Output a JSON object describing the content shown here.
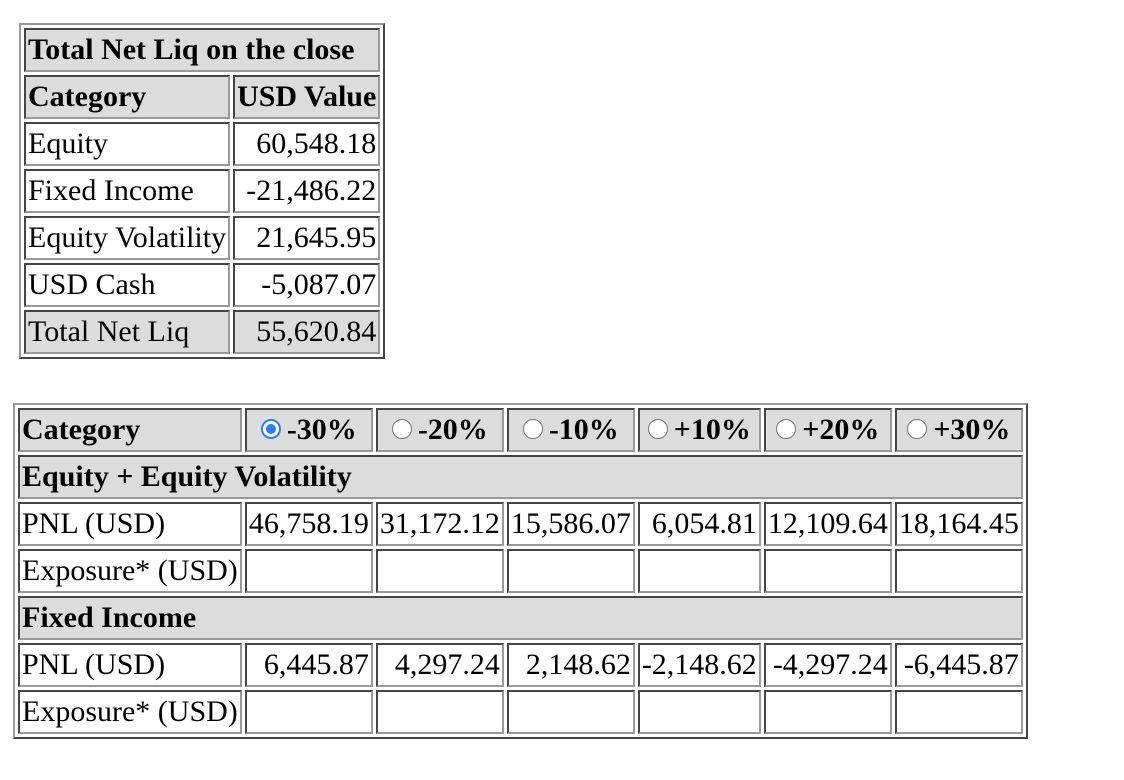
{
  "summary": {
    "title": "Total Net Liq on the close",
    "col_category": "Category",
    "col_value": "USD Value",
    "rows": [
      {
        "category": "Equity",
        "value": "60,548.18"
      },
      {
        "category": "Fixed Income",
        "value": "-21,486.22"
      },
      {
        "category": "Equity Volatility",
        "value": "21,645.95"
      },
      {
        "category": "USD Cash",
        "value": "-5,087.07"
      },
      {
        "category": "Total Net Liq",
        "value": "55,620.84"
      }
    ]
  },
  "scenario": {
    "col_category": "Category",
    "selected_index": 0,
    "options": [
      "-30%",
      "-20%",
      "-10%",
      "+10%",
      "+20%",
      "+30%"
    ],
    "groups": [
      {
        "name": "Equity + Equity Volatility",
        "pnl_label": "PNL (USD)",
        "pnl": [
          "46,758.19",
          "31,172.12",
          "15,586.07",
          "6,054.81",
          "12,109.64",
          "18,164.45"
        ],
        "exposure_label": "Exposure* (USD)",
        "exposure": [
          "",
          "",
          "",
          "",
          "",
          ""
        ]
      },
      {
        "name": "Fixed Income",
        "pnl_label": "PNL (USD)",
        "pnl": [
          "6,445.87",
          "4,297.24",
          "2,148.62",
          "-2,148.62",
          "-4,297.24",
          "-6,445.87"
        ],
        "exposure_label": "Exposure* (USD)",
        "exposure": [
          "",
          "",
          "",
          "",
          "",
          ""
        ]
      }
    ]
  }
}
